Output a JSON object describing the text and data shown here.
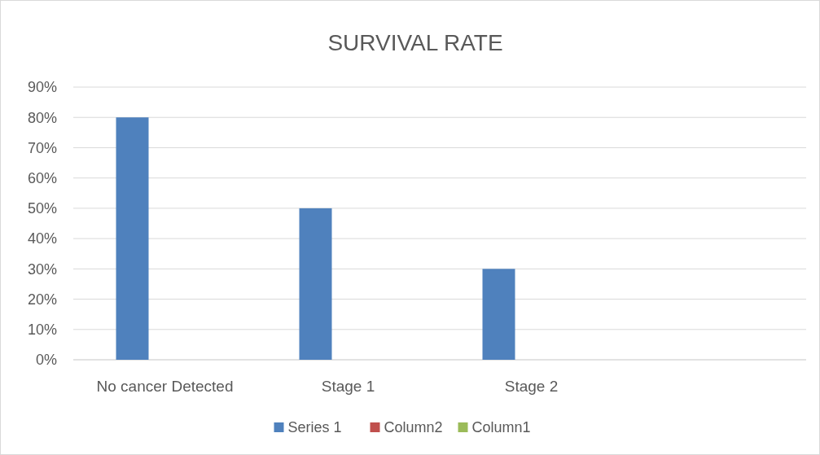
{
  "chart_data": {
    "type": "bar",
    "title": "SURVIVAL RATE",
    "categories": [
      "No cancer Detected",
      "Stage 1",
      "Stage 2",
      null
    ],
    "series": [
      {
        "name": "Series 1",
        "color": "#4f81bd",
        "values": [
          80,
          50,
          30,
          null
        ]
      },
      {
        "name": "Column2",
        "color": "#c0504d",
        "values": [
          null,
          null,
          null,
          null
        ]
      },
      {
        "name": "Column1",
        "color": "#9bbb59",
        "values": [
          null,
          null,
          null,
          null
        ]
      }
    ],
    "ylim": [
      0,
      90
    ],
    "yticks": [
      {
        "value": 0,
        "label": "0%"
      },
      {
        "value": 10,
        "label": "10%"
      },
      {
        "value": 20,
        "label": "20%"
      },
      {
        "value": 30,
        "label": "30%"
      },
      {
        "value": 40,
        "label": "40%"
      },
      {
        "value": 50,
        "label": "50%"
      },
      {
        "value": 60,
        "label": "60%"
      },
      {
        "value": 70,
        "label": "70%"
      },
      {
        "value": 80,
        "label": "80%"
      },
      {
        "value": 90,
        "label": "90%"
      }
    ],
    "grid": "y",
    "legend": "bottom"
  }
}
